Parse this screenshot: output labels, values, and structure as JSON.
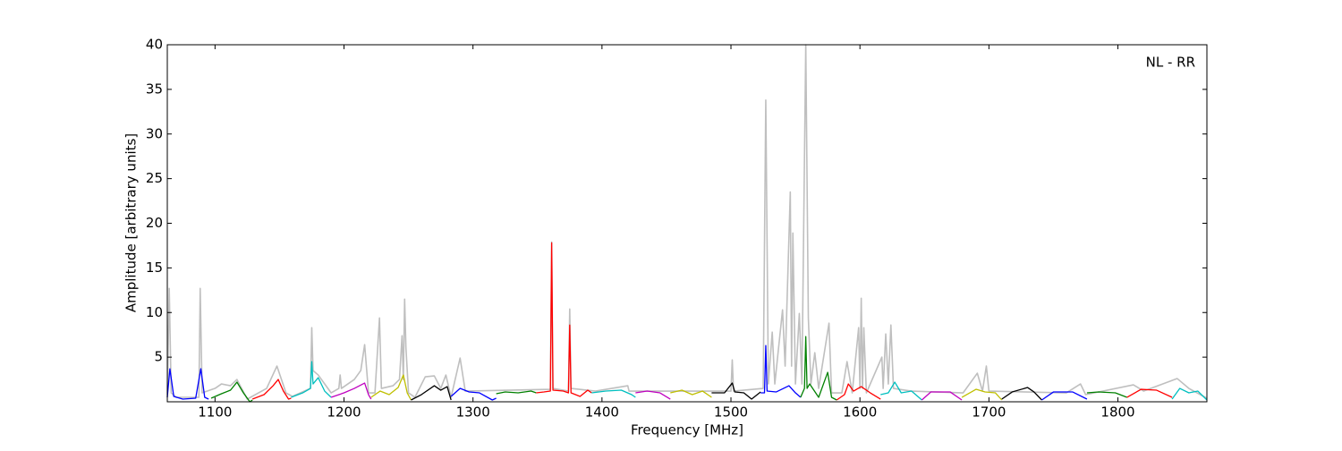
{
  "chart_data": {
    "type": "line",
    "xlabel": "Frequency [MHz]",
    "ylabel": "Amplitude [arbitrary units]",
    "annotation": "NL - RR",
    "xlim": [
      1063,
      1869
    ],
    "ylim": [
      0,
      40
    ],
    "xticks": [
      1100,
      1200,
      1300,
      1400,
      1500,
      1600,
      1700,
      1800
    ],
    "yticks": [
      5,
      10,
      15,
      20,
      25,
      30,
      35,
      40
    ],
    "series": [
      {
        "color": "#bfbfbf",
        "x": [
          1063,
          1064.5,
          1066,
          1070,
          1087.5,
          1088.5,
          1090,
          1100,
          1105,
          1112,
          1117,
          1125,
          1140,
          1148,
          1155,
          1160,
          1174,
          1175,
          1176,
          1180,
          1190,
          1196,
          1197,
          1198,
          1208,
          1213,
          1216,
          1219,
          1224,
          1227.5,
          1229,
          1238,
          1243,
          1245,
          1246,
          1247,
          1248,
          1250,
          1255,
          1263,
          1270,
          1275,
          1279,
          1283,
          1290,
          1294,
          1360,
          1361,
          1362,
          1374,
          1375,
          1376,
          1395,
          1420,
          1421,
          1500,
          1501,
          1502,
          1525,
          1527,
          1529,
          1532,
          1534,
          1540,
          1542,
          1546,
          1547,
          1548,
          1550,
          1553,
          1555,
          1558,
          1560,
          1562,
          1565,
          1568,
          1576,
          1578,
          1586,
          1590,
          1594,
          1599,
          1600,
          1601,
          1602,
          1603,
          1605,
          1617,
          1618,
          1620,
          1622,
          1624,
          1626,
          1640,
          1680,
          1691,
          1695,
          1698,
          1700,
          1760,
          1771,
          1775,
          1812,
          1820,
          1846,
          1855,
          1869
        ],
        "values": [
          0.5,
          12.7,
          1,
          0.5,
          0.5,
          12.7,
          1,
          1.5,
          2.0,
          1.8,
          2.5,
          0.3,
          1.5,
          4.0,
          1.0,
          0.6,
          1.5,
          8.3,
          3.5,
          3.0,
          1.0,
          1.5,
          3.0,
          1.5,
          2.5,
          3.5,
          6.4,
          1.0,
          1.0,
          9.4,
          1.5,
          1.8,
          2.5,
          7.4,
          2.5,
          11.5,
          6.1,
          1.0,
          0.5,
          2.8,
          2.9,
          1.5,
          3.0,
          0.5,
          4.9,
          1.2,
          1.4,
          17.9,
          1.5,
          1.2,
          10.4,
          1.5,
          1.2,
          1.8,
          1.2,
          1.2,
          4.7,
          1.2,
          1.5,
          33.8,
          2.0,
          7.8,
          2.0,
          10.3,
          4,
          23.5,
          4,
          18.9,
          2.0,
          9.9,
          2.0,
          40,
          9.4,
          2.0,
          5.5,
          1.5,
          8.8,
          1.0,
          1.0,
          4.5,
          1.0,
          8.3,
          1.5,
          11.6,
          1.5,
          8.3,
          1.0,
          5.0,
          1.5,
          7.6,
          2.0,
          8.6,
          1.5,
          1.2,
          1.0,
          3.2,
          1.2,
          4.0,
          1.2,
          1.0,
          2.0,
          0.8,
          1.9,
          1.2,
          2.6,
          1.5,
          0.4
        ]
      },
      {
        "color": "#0000ff",
        "x": [
          1063,
          1065,
          1068,
          1075,
          1085,
          1089,
          1092,
          1095
        ],
        "values": [
          0.5,
          3.7,
          0.6,
          0.3,
          0.4,
          3.7,
          0.5,
          0.3
        ]
      },
      {
        "color": "#008000",
        "x": [
          1097,
          1105,
          1112,
          1117,
          1122,
          1127,
          1129
        ],
        "values": [
          0.4,
          0.9,
          1.3,
          2.2,
          1.0,
          0.0,
          0.2
        ]
      },
      {
        "color": "#ff0000",
        "x": [
          1129,
          1138,
          1145,
          1149,
          1153,
          1157,
          1159
        ],
        "values": [
          0.3,
          0.8,
          1.8,
          2.5,
          1.2,
          0.3,
          0.4
        ]
      },
      {
        "color": "#00bfbf",
        "x": [
          1159,
          1168,
          1174,
          1175,
          1176,
          1180,
          1185,
          1190
        ],
        "values": [
          0.5,
          1.0,
          1.5,
          4.5,
          2.0,
          2.7,
          1.2,
          0.5
        ]
      },
      {
        "color": "#bf00bf",
        "x": [
          1190,
          1200,
          1208,
          1216,
          1219,
          1221
        ],
        "values": [
          0.5,
          1.0,
          1.5,
          2.1,
          0.8,
          0.3
        ]
      },
      {
        "color": "#bfbf00",
        "x": [
          1221,
          1228,
          1235,
          1242,
          1246,
          1249,
          1252
        ],
        "values": [
          0.5,
          1.2,
          0.8,
          1.6,
          3.0,
          1.0,
          0.2
        ]
      },
      {
        "color": "#000000",
        "x": [
          1252,
          1260,
          1270,
          1275,
          1280,
          1283
        ],
        "values": [
          0.2,
          0.8,
          1.8,
          1.3,
          1.7,
          0.2
        ]
      },
      {
        "color": "#0000ff",
        "x": [
          1283,
          1290,
          1297,
          1305,
          1315,
          1318
        ],
        "values": [
          0.6,
          1.5,
          1.1,
          1.0,
          0.2,
          0.4
        ]
      },
      {
        "color": "#008000",
        "x": [
          1318,
          1325,
          1335,
          1345,
          1349
        ],
        "values": [
          0.9,
          1.1,
          1.0,
          1.2,
          1.0
        ]
      },
      {
        "color": "#ff0000",
        "x": [
          1349,
          1355,
          1360,
          1361,
          1362,
          1370,
          1374,
          1375,
          1376,
          1383,
          1389,
          1392
        ],
        "values": [
          1.0,
          1.1,
          1.2,
          17.8,
          1.3,
          1.2,
          1.0,
          8.6,
          1.0,
          0.6,
          1.3,
          1.0
        ]
      },
      {
        "color": "#00bfbf",
        "x": [
          1392,
          1403,
          1415,
          1423,
          1426
        ],
        "values": [
          1.0,
          1.2,
          1.3,
          0.8,
          0.5
        ]
      },
      {
        "color": "#bf00bf",
        "x": [
          1426,
          1435,
          1445,
          1453
        ],
        "values": [
          1.0,
          1.2,
          1.0,
          0.3
        ]
      },
      {
        "color": "#bfbf00",
        "x": [
          1453,
          1462,
          1470,
          1478,
          1485
        ],
        "values": [
          1.0,
          1.3,
          0.8,
          1.2,
          0.5
        ]
      },
      {
        "color": "#000000",
        "x": [
          1485,
          1495,
          1501,
          1503,
          1510,
          1516,
          1523
        ],
        "values": [
          1.0,
          1.0,
          2.1,
          1.1,
          1.0,
          0.3,
          1.1
        ]
      },
      {
        "color": "#0000ff",
        "x": [
          1523,
          1526,
          1527,
          1528,
          1535,
          1545,
          1550,
          1554
        ],
        "values": [
          1.0,
          1.0,
          6.3,
          1.2,
          1.1,
          1.8,
          1.0,
          0.5
        ]
      },
      {
        "color": "#008000",
        "x": [
          1554,
          1557,
          1558,
          1559,
          1561,
          1568,
          1575,
          1578,
          1582
        ],
        "values": [
          0.5,
          1.5,
          7.3,
          1.5,
          2.0,
          0.5,
          3.3,
          0.5,
          0.2
        ]
      },
      {
        "color": "#ff0000",
        "x": [
          1582,
          1588,
          1591,
          1595,
          1601,
          1608,
          1616
        ],
        "values": [
          0.2,
          0.8,
          2.0,
          1.2,
          1.7,
          1.0,
          0.3
        ]
      },
      {
        "color": "#00bfbf",
        "x": [
          1616,
          1622,
          1627,
          1632,
          1640,
          1648
        ],
        "values": [
          0.8,
          1.0,
          2.2,
          1.0,
          1.2,
          0.2
        ]
      },
      {
        "color": "#bf00bf",
        "x": [
          1648,
          1655,
          1670,
          1679
        ],
        "values": [
          0.2,
          1.1,
          1.1,
          0.2
        ]
      },
      {
        "color": "#bfbf00",
        "x": [
          1679,
          1690,
          1697,
          1705,
          1710
        ],
        "values": [
          0.5,
          1.4,
          1.1,
          1.0,
          0.2
        ]
      },
      {
        "color": "#000000",
        "x": [
          1710,
          1718,
          1730,
          1735,
          1741
        ],
        "values": [
          0.3,
          1.1,
          1.6,
          1.1,
          0.2
        ]
      },
      {
        "color": "#0000ff",
        "x": [
          1741,
          1750,
          1765,
          1776
        ],
        "values": [
          0.2,
          1.1,
          1.1,
          0.3
        ]
      },
      {
        "color": "#008000",
        "x": [
          1776,
          1785,
          1798,
          1807
        ],
        "values": [
          1.0,
          1.1,
          1.0,
          0.5
        ]
      },
      {
        "color": "#ff0000",
        "x": [
          1807,
          1818,
          1830,
          1842
        ],
        "values": [
          0.5,
          1.4,
          1.3,
          0.5
        ]
      },
      {
        "color": "#00bfbf",
        "x": [
          1842,
          1848,
          1855,
          1862,
          1869
        ],
        "values": [
          0.3,
          1.5,
          1.0,
          1.2,
          0.2
        ]
      }
    ]
  }
}
